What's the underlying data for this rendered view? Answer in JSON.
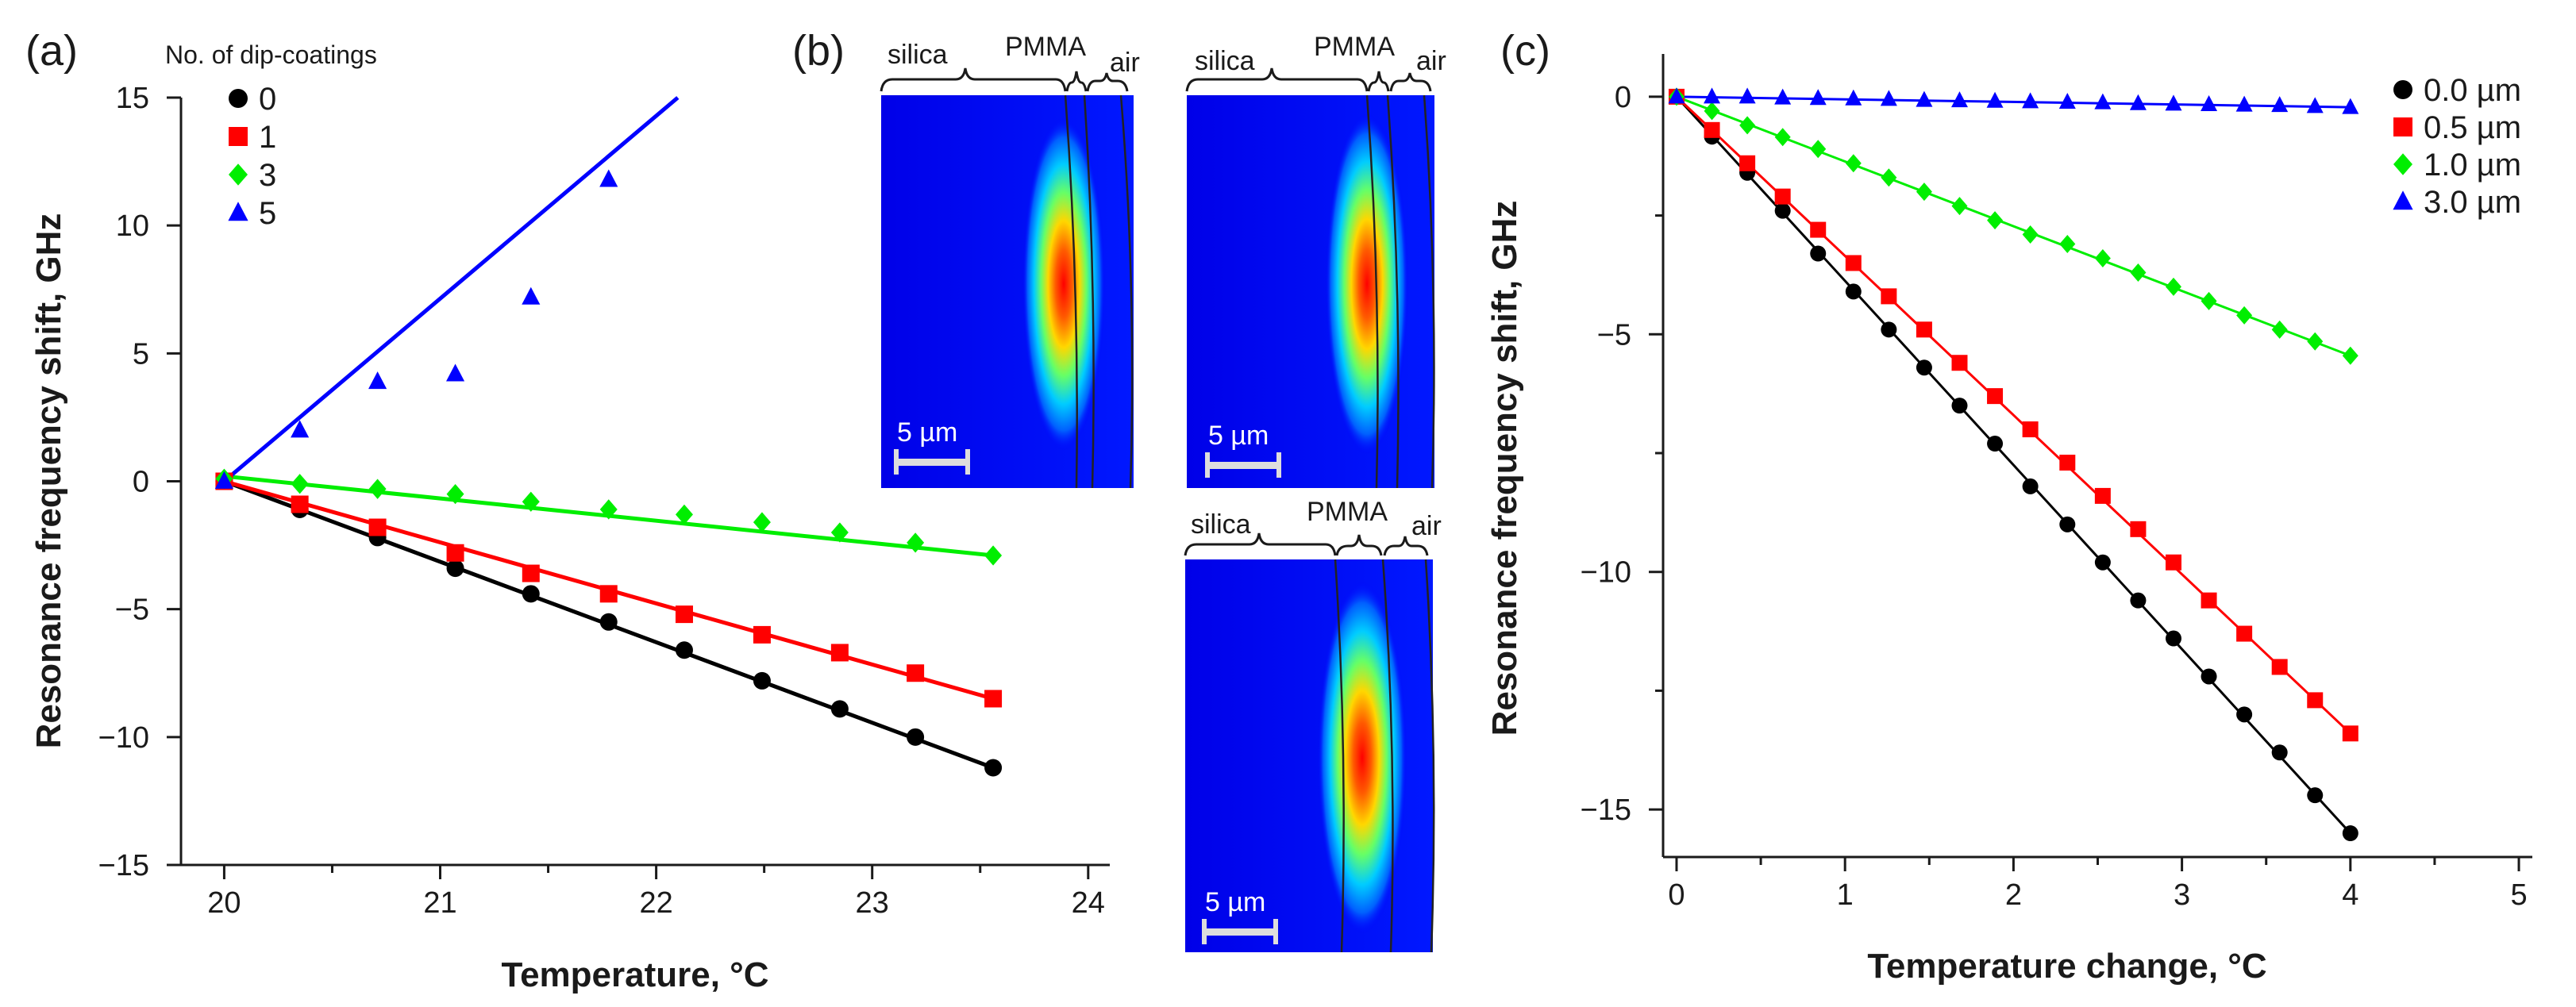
{
  "figure": {
    "panel_labels": [
      "(a)",
      "(b)",
      "(c)"
    ]
  },
  "chart_data": [
    {
      "id": "a",
      "type": "scatter",
      "title": "",
      "xlabel": "Temperature, °C",
      "ylabel": "Resonance frequency shift, GHz",
      "xlim": [
        19.8,
        24.1
      ],
      "ylim": [
        -15,
        15
      ],
      "xticks": [
        20,
        21,
        22,
        23,
        24
      ],
      "xtick_labels": [
        "20",
        "21",
        "22",
        "23",
        "24"
      ],
      "yticks": [
        -15,
        -10,
        -5,
        0,
        5,
        10,
        15
      ],
      "ytick_labels": [
        "−15",
        "−10",
        "−5",
        "0",
        "5",
        "10",
        "15"
      ],
      "legend_title": "No. of dip-coatings",
      "legend_position": "top-left",
      "series": [
        {
          "name": "0",
          "color": "#000000",
          "marker": "circle",
          "x": [
            20.0,
            20.35,
            20.71,
            21.07,
            21.42,
            21.78,
            22.13,
            22.49,
            22.85,
            23.2,
            23.56
          ],
          "y": [
            0,
            -1.1,
            -2.2,
            -3.4,
            -4.4,
            -5.5,
            -6.6,
            -7.8,
            -8.9,
            -10.0,
            -11.2
          ],
          "fit": [
            [
              20.0,
              0
            ],
            [
              23.56,
              -11.2
            ]
          ]
        },
        {
          "name": "1",
          "color": "#ff0000",
          "marker": "square",
          "x": [
            20.0,
            20.35,
            20.71,
            21.07,
            21.42,
            21.78,
            22.13,
            22.49,
            22.85,
            23.2,
            23.56
          ],
          "y": [
            0,
            -0.9,
            -1.8,
            -2.8,
            -3.6,
            -4.4,
            -5.2,
            -6.0,
            -6.7,
            -7.5,
            -8.5
          ],
          "fit": [
            [
              20.0,
              0
            ],
            [
              23.56,
              -8.5
            ]
          ]
        },
        {
          "name": "3",
          "color": "#00ee00",
          "marker": "diamond",
          "x": [
            20.0,
            20.35,
            20.71,
            21.07,
            21.42,
            21.78,
            22.13,
            22.49,
            22.85,
            23.2,
            23.56
          ],
          "y": [
            0.1,
            -0.1,
            -0.3,
            -0.5,
            -0.8,
            -1.1,
            -1.3,
            -1.6,
            -2.0,
            -2.4,
            -2.9
          ],
          "fit": [
            [
              20.0,
              0.2
            ],
            [
              23.56,
              -2.9
            ]
          ]
        },
        {
          "name": "5",
          "color": "#0000ff",
          "marker": "triangle",
          "x": [
            20.0,
            20.35,
            20.71,
            21.07,
            21.42,
            21.78
          ],
          "y": [
            0,
            2.0,
            3.9,
            4.2,
            7.2,
            11.8
          ],
          "fit": [
            [
              20.0,
              0
            ],
            [
              22.1,
              15.0
            ]
          ]
        }
      ]
    },
    {
      "id": "c",
      "type": "scatter",
      "title": "",
      "xlabel": "Temperature change, °C",
      "ylabel": "Resonance frequency shift, GHz",
      "xlim": [
        -0.08,
        5.08
      ],
      "ylim": [
        -16,
        0.9
      ],
      "xticks": [
        0,
        1,
        2,
        3,
        4,
        5
      ],
      "xtick_labels": [
        "0",
        "1",
        "2",
        "3",
        "4",
        "5"
      ],
      "yticks": [
        -15,
        -10,
        -5,
        0
      ],
      "ytick_labels": [
        "−15",
        "−10",
        "−5",
        "0"
      ],
      "legend_position": "top-right",
      "series": [
        {
          "name": "0.0 µm",
          "color": "#000000",
          "marker": "circle",
          "x": [
            0.0,
            0.21,
            0.42,
            0.63,
            0.84,
            1.05,
            1.26,
            1.47,
            1.68,
            1.89,
            2.1,
            2.32,
            2.53,
            2.74,
            2.95,
            3.16,
            3.37,
            3.58,
            3.79,
            4.0
          ],
          "y": [
            0,
            -0.84,
            -1.6,
            -2.4,
            -3.3,
            -4.1,
            -4.9,
            -5.7,
            -6.5,
            -7.3,
            -8.2,
            -9.0,
            -9.8,
            -10.6,
            -11.4,
            -12.2,
            -13.0,
            -13.8,
            -14.7,
            -15.5
          ],
          "fit": [
            [
              0,
              0
            ],
            [
              4.0,
              -15.5
            ]
          ]
        },
        {
          "name": "0.5 µm",
          "color": "#ff0000",
          "marker": "square",
          "x": [
            0.0,
            0.21,
            0.42,
            0.63,
            0.84,
            1.05,
            1.26,
            1.47,
            1.68,
            1.89,
            2.1,
            2.32,
            2.53,
            2.74,
            2.95,
            3.16,
            3.37,
            3.58,
            3.79,
            4.0
          ],
          "y": [
            0,
            -0.7,
            -1.4,
            -2.1,
            -2.8,
            -3.5,
            -4.2,
            -4.9,
            -5.6,
            -6.3,
            -7.0,
            -7.7,
            -8.4,
            -9.1,
            -9.8,
            -10.6,
            -11.3,
            -12.0,
            -12.7,
            -13.4
          ],
          "fit": [
            [
              0,
              0
            ],
            [
              4.0,
              -13.4
            ]
          ]
        },
        {
          "name": "1.0 µm",
          "color": "#00ee00",
          "marker": "diamond",
          "x": [
            0.0,
            0.21,
            0.42,
            0.63,
            0.84,
            1.05,
            1.26,
            1.47,
            1.68,
            1.89,
            2.1,
            2.32,
            2.53,
            2.74,
            2.95,
            3.16,
            3.37,
            3.58,
            3.79,
            4.0
          ],
          "y": [
            0,
            -0.3,
            -0.6,
            -0.85,
            -1.1,
            -1.4,
            -1.7,
            -2.0,
            -2.3,
            -2.6,
            -2.9,
            -3.1,
            -3.4,
            -3.7,
            -4.0,
            -4.3,
            -4.6,
            -4.9,
            -5.15,
            -5.45
          ],
          "fit": [
            [
              0,
              0
            ],
            [
              4.0,
              -5.45
            ]
          ]
        },
        {
          "name": "3.0 µm",
          "color": "#0000ff",
          "marker": "triangle",
          "x": [
            0.0,
            0.21,
            0.42,
            0.63,
            0.84,
            1.05,
            1.26,
            1.47,
            1.68,
            1.89,
            2.1,
            2.32,
            2.53,
            2.74,
            2.95,
            3.16,
            3.37,
            3.58,
            3.79,
            4.0
          ],
          "y": [
            0,
            0,
            0,
            -0.02,
            -0.03,
            -0.04,
            -0.05,
            -0.07,
            -0.08,
            -0.09,
            -0.1,
            -0.11,
            -0.12,
            -0.14,
            -0.15,
            -0.16,
            -0.17,
            -0.18,
            -0.2,
            -0.22
          ],
          "fit": [
            [
              0,
              0
            ],
            [
              4.0,
              -0.22
            ]
          ]
        }
      ]
    }
  ],
  "panel_b": {
    "field_maps": [
      {
        "name": "field-map-top-left",
        "layers": [
          "silica",
          "PMMA",
          "air"
        ],
        "scale_bar": "5 µm"
      },
      {
        "name": "field-map-top-right",
        "layers": [
          "silica",
          "PMMA",
          "air"
        ],
        "scale_bar": "5 µm"
      },
      {
        "name": "field-map-bottom",
        "layers": [
          "silica",
          "PMMA",
          "air"
        ],
        "scale_bar": "5 µm"
      }
    ]
  },
  "colors": {
    "field_background": "#0000ff",
    "axis": "#1a1a1a"
  }
}
